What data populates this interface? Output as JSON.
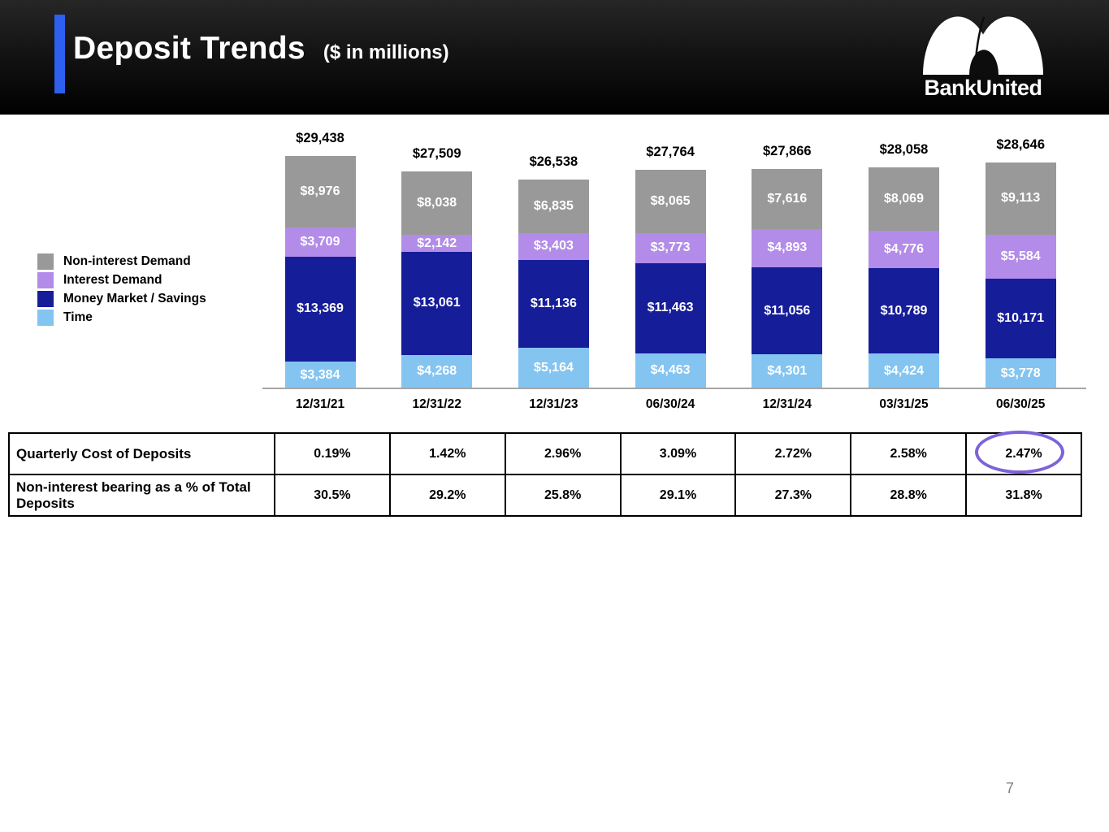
{
  "header": {
    "title": "Deposit Trends",
    "subtitle": "($ in millions)",
    "brand": "BankUnited",
    "accent_color": "#2f5fee"
  },
  "chart_data": {
    "type": "bar",
    "stacked": true,
    "title": "Deposit Trends ($ in millions)",
    "value_prefix": "$",
    "legend_position": "left",
    "ylim": [
      0,
      30000
    ],
    "categories": [
      "12/31/21",
      "12/31/22",
      "12/31/23",
      "06/30/24",
      "12/31/24",
      "03/31/25",
      "06/30/25"
    ],
    "series": [
      {
        "name": "Non-interest Demand",
        "color": "#999999",
        "values": [
          8976,
          8038,
          6835,
          8065,
          7616,
          8069,
          9113
        ]
      },
      {
        "name": "Interest Demand",
        "color": "#b28ce8",
        "values": [
          3709,
          2142,
          3403,
          3773,
          4893,
          4776,
          5584
        ]
      },
      {
        "name": "Money Market / Savings",
        "color": "#161d99",
        "values": [
          13369,
          13061,
          11136,
          11463,
          11056,
          10789,
          10171
        ]
      },
      {
        "name": "Time",
        "color": "#84c4f1",
        "values": [
          3384,
          4268,
          5164,
          4463,
          4301,
          4424,
          3778
        ]
      }
    ],
    "totals": [
      29438,
      27509,
      26538,
      27764,
      27866,
      28058,
      28646
    ]
  },
  "table": {
    "rows": [
      {
        "label": "Quarterly Cost of Deposits",
        "values": [
          "0.19%",
          "1.42%",
          "2.96%",
          "3.09%",
          "2.72%",
          "2.58%",
          "2.47%"
        ]
      },
      {
        "label": "Non-interest bearing as a % of Total Deposits",
        "values": [
          "30.5%",
          "29.2%",
          "25.8%",
          "29.1%",
          "27.3%",
          "28.8%",
          "31.8%"
        ]
      }
    ],
    "highlight": {
      "row": 0,
      "col": 6,
      "color": "#7d63d8"
    }
  },
  "footer": {
    "page_number": "7"
  }
}
